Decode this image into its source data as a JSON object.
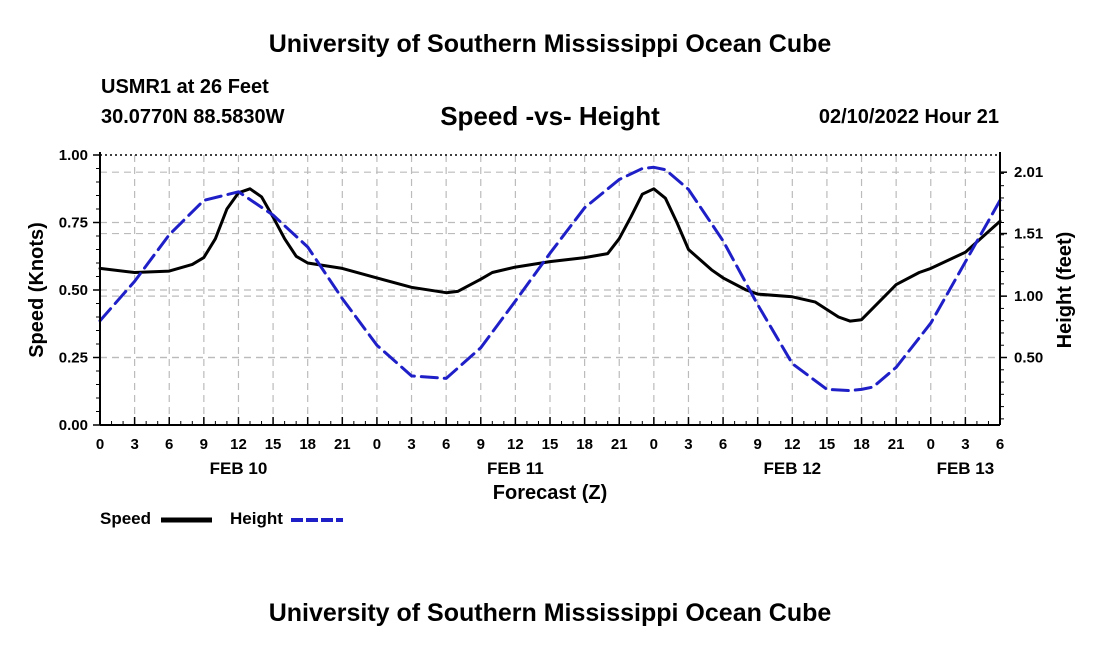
{
  "header": {
    "title": "University of Southern Mississippi Ocean Cube",
    "footer_title": "University of Southern Mississippi Ocean Cube",
    "station": "USMR1 at 26 Feet",
    "coordinates": "30.0770N  88.5830W",
    "datetime": "02/10/2022 Hour 21"
  },
  "legend": {
    "speed_label": "Speed",
    "height_label": "Height"
  },
  "colors": {
    "speed": "#000000",
    "height": "#1f1fc8",
    "grid": "#bbbbbb"
  },
  "chart_data": {
    "type": "line",
    "title": "Speed -vs- Height",
    "xlabel": "Forecast (Z)",
    "ylabel_left": "Speed (Knots)",
    "ylabel_right": "Height (feet)",
    "x_unit": "hours since FEB 10 00Z",
    "x_range": [
      0,
      78
    ],
    "x_ticks": [
      0,
      3,
      6,
      9,
      12,
      15,
      18,
      21,
      24,
      27,
      30,
      33,
      36,
      39,
      42,
      45,
      48,
      51,
      54,
      57,
      60,
      63,
      66,
      69,
      72,
      75,
      78
    ],
    "x_tick_labels": [
      "0",
      "3",
      "6",
      "9",
      "12",
      "15",
      "18",
      "21",
      "0",
      "3",
      "6",
      "9",
      "12",
      "15",
      "18",
      "21",
      "0",
      "3",
      "6",
      "9",
      "12",
      "15",
      "18",
      "21",
      "0",
      "3",
      "6"
    ],
    "date_labels": [
      {
        "x": 12,
        "label": "FEB 10"
      },
      {
        "x": 36,
        "label": "FEB 11"
      },
      {
        "x": 60,
        "label": "FEB 12"
      },
      {
        "x": 75,
        "label": "FEB 13"
      }
    ],
    "ylim_left": [
      0,
      1.0
    ],
    "y_ticks_left": [
      0,
      0.25,
      0.5,
      0.75,
      1.0
    ],
    "y_tick_labels_left": [
      "0.00",
      "0.25",
      "0.50",
      "0.75",
      "1.00"
    ],
    "ylim_right": [
      -0.05,
      2.15
    ],
    "y_ticks_right": [
      0.5,
      1.0,
      1.51,
      2.01
    ],
    "y_tick_labels_right": [
      "0.50",
      "1.00",
      "1.51",
      "2.01"
    ],
    "grid": true,
    "series": [
      {
        "name": "Speed",
        "axis": "left",
        "style": "solid",
        "x": [
          0,
          3,
          6,
          8,
          9,
          10,
          11,
          12,
          13,
          14,
          15,
          16,
          17,
          18,
          21,
          24,
          27,
          30,
          31,
          33,
          34,
          36,
          39,
          42,
          44,
          45,
          46,
          47,
          48,
          49,
          50,
          51,
          53,
          54,
          56,
          57,
          60,
          62,
          64,
          65,
          66,
          69,
          71,
          72,
          75,
          78
        ],
        "values": [
          0.58,
          0.565,
          0.57,
          0.595,
          0.62,
          0.69,
          0.8,
          0.86,
          0.875,
          0.845,
          0.77,
          0.69,
          0.625,
          0.6,
          0.58,
          0.545,
          0.51,
          0.49,
          0.495,
          0.54,
          0.565,
          0.585,
          0.605,
          0.62,
          0.635,
          0.69,
          0.77,
          0.855,
          0.875,
          0.84,
          0.75,
          0.65,
          0.575,
          0.545,
          0.5,
          0.485,
          0.475,
          0.455,
          0.4,
          0.385,
          0.39,
          0.52,
          0.565,
          0.58,
          0.64,
          0.755
        ]
      },
      {
        "name": "Height",
        "axis": "right",
        "style": "dashed",
        "x": [
          0,
          3,
          6,
          9,
          12,
          15,
          18,
          21,
          24,
          27,
          30,
          33,
          36,
          39,
          42,
          45,
          47,
          48,
          49,
          51,
          54,
          57,
          60,
          63,
          65,
          66,
          67,
          69,
          72,
          75,
          78
        ],
        "values": [
          0.8,
          1.12,
          1.5,
          1.78,
          1.85,
          1.66,
          1.4,
          0.98,
          0.6,
          0.35,
          0.33,
          0.58,
          0.96,
          1.35,
          1.72,
          1.95,
          2.04,
          2.05,
          2.03,
          1.87,
          1.45,
          0.93,
          0.45,
          0.24,
          0.23,
          0.24,
          0.26,
          0.42,
          0.78,
          1.28,
          1.78
        ]
      }
    ]
  }
}
